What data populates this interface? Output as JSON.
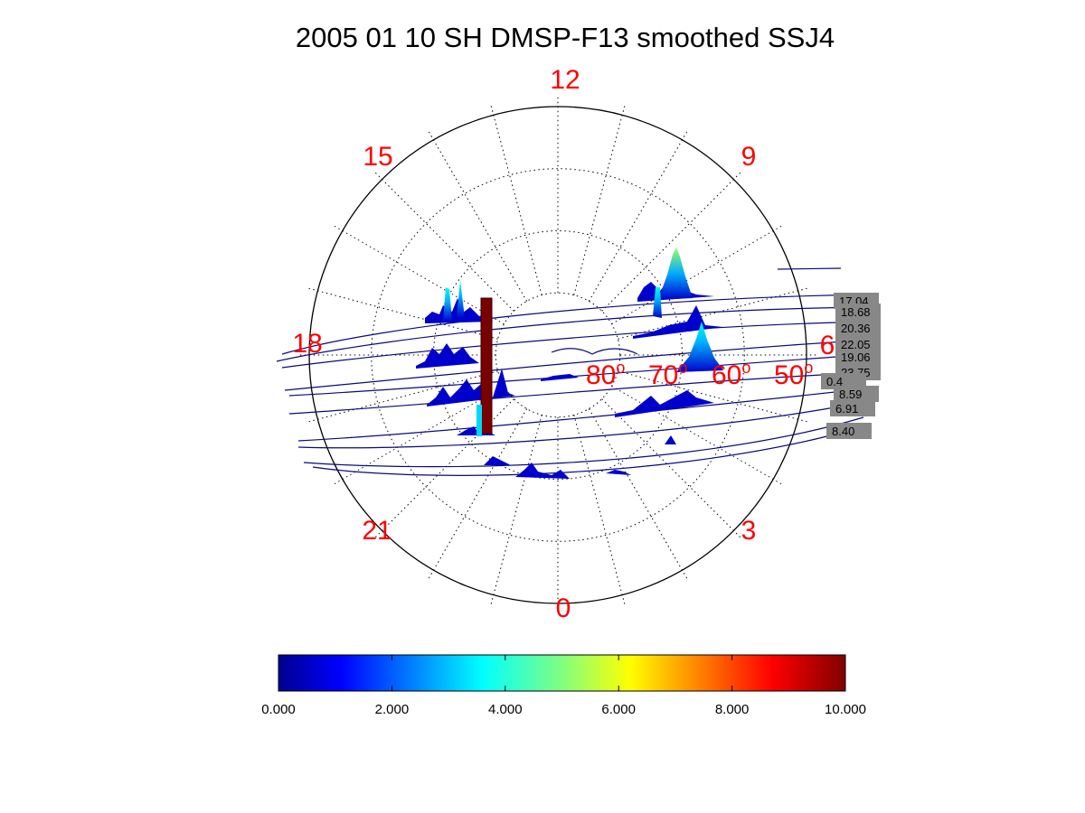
{
  "chart_data": {
    "type": "polar-track-plot",
    "title": "2005 01 10 SH DMSP-F13 smoothed SSJ4",
    "mlt_labels": [
      "12",
      "9",
      "6",
      "3",
      "0",
      "21",
      "18",
      "15"
    ],
    "latitude_labels": [
      "80",
      "70",
      "60",
      "50"
    ],
    "latitude_unit": "o",
    "grid": "dotted",
    "pass_tags": [
      "17.04",
      "18.68",
      "20.36",
      "22.05",
      "19.06",
      "23.75",
      "0.4",
      "8.59",
      "6.91",
      "8.40"
    ],
    "colorbar": {
      "colormap": "jet",
      "range": [
        0,
        10
      ],
      "tick_labels": [
        "0.000",
        "2.000",
        "4.000",
        "6.000",
        "8.000",
        "10.000"
      ]
    },
    "colors": {
      "track": "#0a0a7a",
      "peak_low": "#0000cc",
      "peak_mid": "#00d8ff",
      "peak_high": "#7a0000",
      "tag_box": "#888888"
    }
  }
}
